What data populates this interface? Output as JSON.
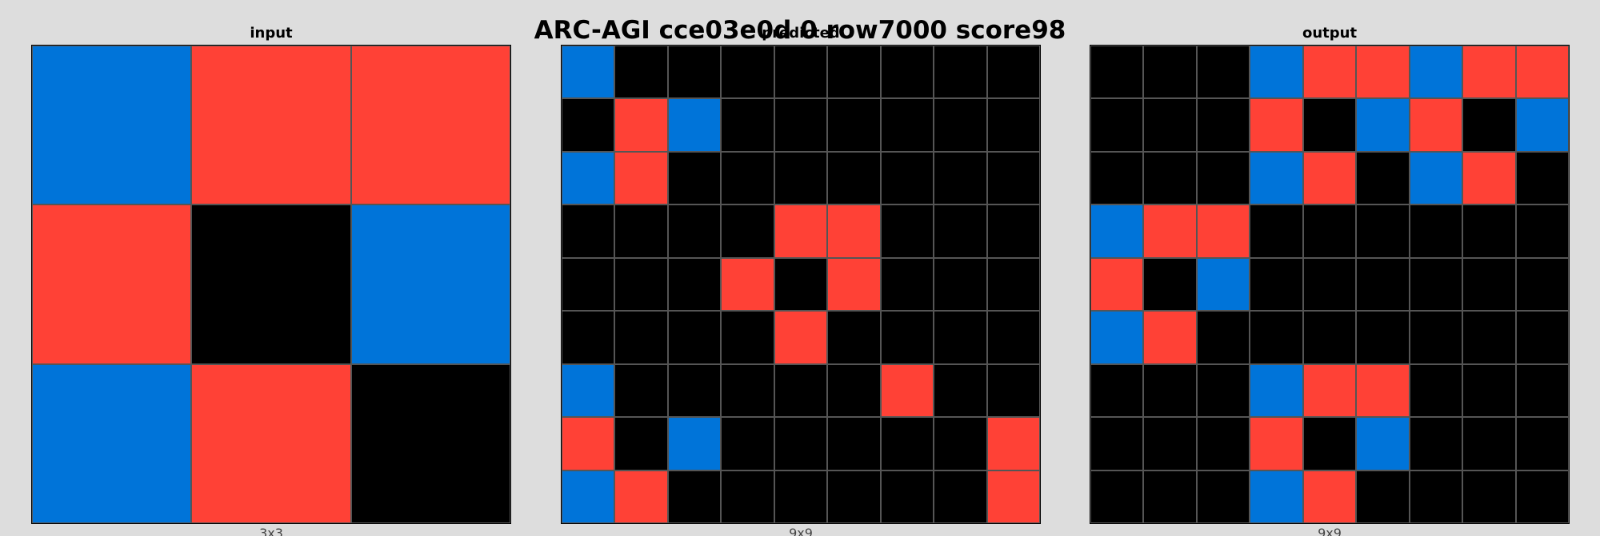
{
  "title": "ARC-AGI cce03e0d 0 row7000 score98",
  "palette": {
    "0": "#000000",
    "1": "#0074d9",
    "2": "#ff4136"
  },
  "panels": [
    {
      "title": "input",
      "caption": "3x3",
      "grid": [
        [
          1,
          2,
          2
        ],
        [
          2,
          0,
          1
        ],
        [
          1,
          2,
          0
        ]
      ]
    },
    {
      "title": "predicted",
      "caption": "9x9",
      "grid": [
        [
          1,
          0,
          0,
          0,
          0,
          0,
          0,
          0,
          0
        ],
        [
          0,
          2,
          1,
          0,
          0,
          0,
          0,
          0,
          0
        ],
        [
          1,
          2,
          0,
          0,
          0,
          0,
          0,
          0,
          0
        ],
        [
          0,
          0,
          0,
          0,
          2,
          2,
          0,
          0,
          0
        ],
        [
          0,
          0,
          0,
          2,
          0,
          2,
          0,
          0,
          0
        ],
        [
          0,
          0,
          0,
          0,
          2,
          0,
          0,
          0,
          0
        ],
        [
          1,
          0,
          0,
          0,
          0,
          0,
          2,
          0,
          0
        ],
        [
          2,
          0,
          1,
          0,
          0,
          0,
          0,
          0,
          2
        ],
        [
          1,
          2,
          0,
          0,
          0,
          0,
          0,
          0,
          2
        ]
      ]
    },
    {
      "title": "output",
      "caption": "9x9",
      "grid": [
        [
          0,
          0,
          0,
          1,
          2,
          2,
          1,
          2,
          2
        ],
        [
          0,
          0,
          0,
          2,
          0,
          1,
          2,
          0,
          1
        ],
        [
          0,
          0,
          0,
          1,
          2,
          0,
          1,
          2,
          0
        ],
        [
          1,
          2,
          2,
          0,
          0,
          0,
          0,
          0,
          0
        ],
        [
          2,
          0,
          1,
          0,
          0,
          0,
          0,
          0,
          0
        ],
        [
          1,
          2,
          0,
          0,
          0,
          0,
          0,
          0,
          0
        ],
        [
          0,
          0,
          0,
          1,
          2,
          2,
          0,
          0,
          0
        ],
        [
          0,
          0,
          0,
          2,
          0,
          1,
          0,
          0,
          0
        ],
        [
          0,
          0,
          0,
          1,
          2,
          0,
          0,
          0,
          0
        ]
      ]
    }
  ]
}
